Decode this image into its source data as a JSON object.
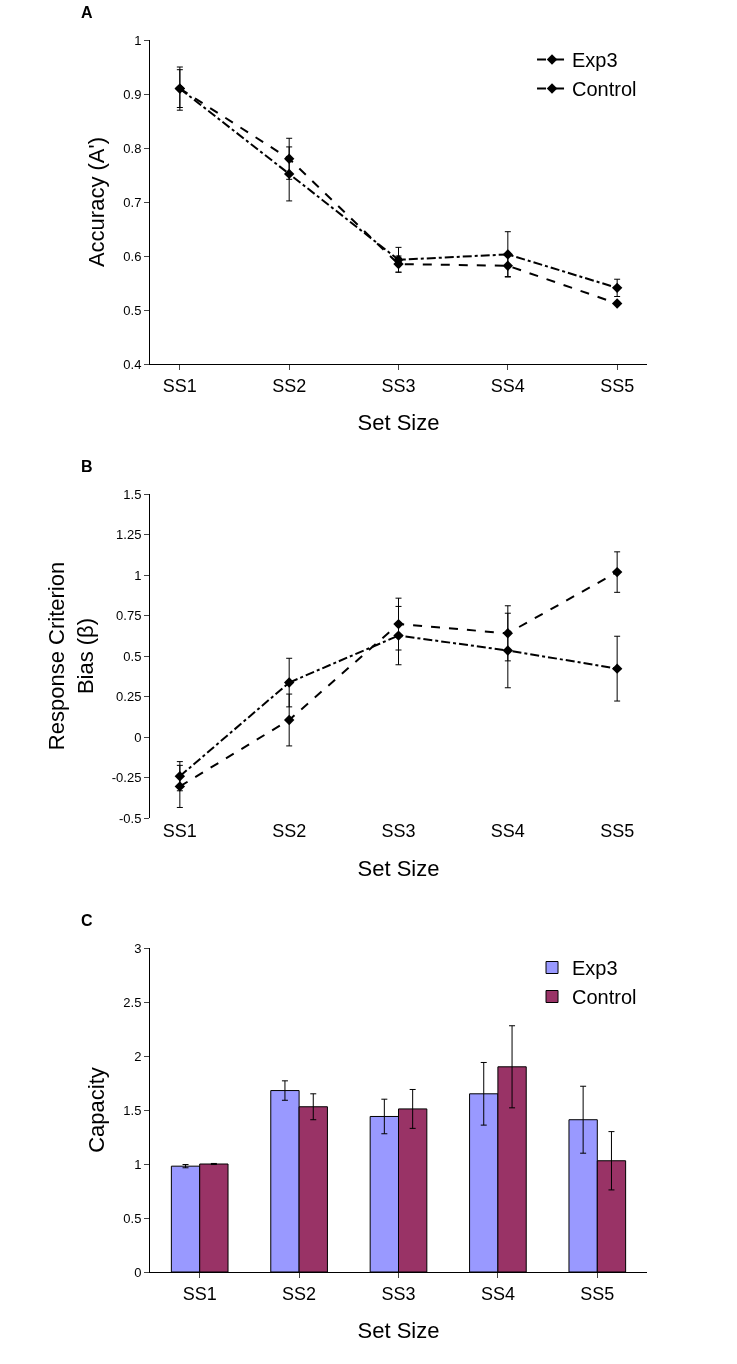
{
  "chart_data": [
    {
      "type": "line",
      "title": "A",
      "xlabel": "Set Size",
      "ylabel": "Accuracy (A')",
      "categories": [
        "SS1",
        "SS2",
        "SS3",
        "SS4",
        "SS5"
      ],
      "ylim": [
        0.4,
        1
      ],
      "yticks": [
        0.4,
        0.5,
        0.6,
        0.7,
        0.8,
        0.9,
        1
      ],
      "grid": false,
      "legend": "top right",
      "marker": "diamond",
      "series": [
        {
          "name": "Exp3",
          "color": "#000000",
          "line_style": "dashed",
          "values": [
            0.91,
            0.78,
            0.585,
            0.582,
            0.512
          ],
          "errors": [
            0.035,
            0.038,
            0.015,
            0.02,
            null
          ]
        },
        {
          "name": "Control",
          "color": "#000000",
          "line_style": "dashdot",
          "values": [
            0.91,
            0.752,
            0.593,
            0.603,
            0.541
          ],
          "errors": [
            0.04,
            0.05,
            0.023,
            0.042,
            0.016
          ]
        }
      ]
    },
    {
      "type": "line",
      "title": "B",
      "xlabel": "Set Size",
      "ylabel": "Response Criterion\nBias (β)",
      "categories": [
        "SS1",
        "SS2",
        "SS3",
        "SS4",
        "SS5"
      ],
      "ylim": [
        -0.5,
        1.5
      ],
      "yticks": [
        -0.5,
        -0.25,
        0,
        0.25,
        0.5,
        0.75,
        1,
        1.25,
        1.5
      ],
      "grid": false,
      "marker": "diamond",
      "series": [
        {
          "color": "#000000",
          "line_style": "dashed",
          "values": [
            -0.305,
            0.105,
            0.697,
            0.64,
            1.018
          ],
          "errors": [
            0.13,
            0.16,
            0.16,
            0.17,
            0.125
          ]
        },
        {
          "color": "#000000",
          "line_style": "dashdot",
          "values": [
            -0.242,
            0.336,
            0.626,
            0.534,
            0.422
          ],
          "errors": [
            0.09,
            0.15,
            0.18,
            0.23,
            0.2
          ]
        }
      ]
    },
    {
      "type": "bar",
      "title": "C",
      "xlabel": "Set Size",
      "ylabel": "Capacity",
      "categories": [
        "SS1",
        "SS2",
        "SS3",
        "SS4",
        "SS5"
      ],
      "ylim": [
        0,
        3
      ],
      "yticks": [
        0,
        0.5,
        1,
        1.5,
        2,
        2.5,
        3
      ],
      "grid": false,
      "legend": "top right",
      "series": [
        {
          "name": "Exp3",
          "color": "#9999ff",
          "values": [
            0.98,
            1.68,
            1.44,
            1.65,
            1.41
          ],
          "errors": [
            0.015,
            0.09,
            0.16,
            0.29,
            0.31
          ]
        },
        {
          "name": "Control",
          "color": "#993366",
          "values": [
            1,
            1.53,
            1.51,
            1.9,
            1.03
          ],
          "errors": [
            0.005,
            0.12,
            0.18,
            0.38,
            0.27
          ]
        }
      ]
    }
  ]
}
